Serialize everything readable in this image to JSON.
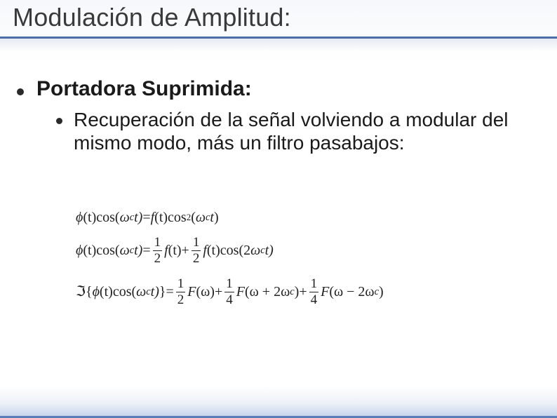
{
  "title": "Modulación de Amplitud:",
  "heading": "Portadora Suprimida:",
  "subpoint": "Recuperación de la señal volviendo a modular del mismo modo, más un filtro pasabajos:",
  "eq1": {
    "lhs_phi": "ϕ",
    "lhs_t": "(t)",
    "cos": "cos(",
    "omega": "ω",
    "omega_sub": "c",
    "t_close": "t)",
    "eq": " = ",
    "f": "f",
    "f_t": "(t)",
    "cos2": "cos",
    "sup2": "2",
    "open": "(",
    "close": ")"
  },
  "eq2": {
    "half_num": "1",
    "half_den": "2",
    "plus": " + ",
    "two": "2"
  },
  "eq3": {
    "fourier": "ℑ",
    "lbrace": "{",
    "rbrace": "}",
    "F": "F",
    "omega_arg": "(ω)",
    "q_num": "1",
    "q_den": "4",
    "plus2w": "(ω + 2ω",
    "minus2w": "(ω − 2ω",
    "close_sub": ")"
  },
  "colors": {
    "title_text": "#3a3a3a",
    "underline": "#3f5d99",
    "body_text": "#1a1a1a",
    "eq_text": "#222222",
    "bottom_glow": "#6e91cd"
  }
}
